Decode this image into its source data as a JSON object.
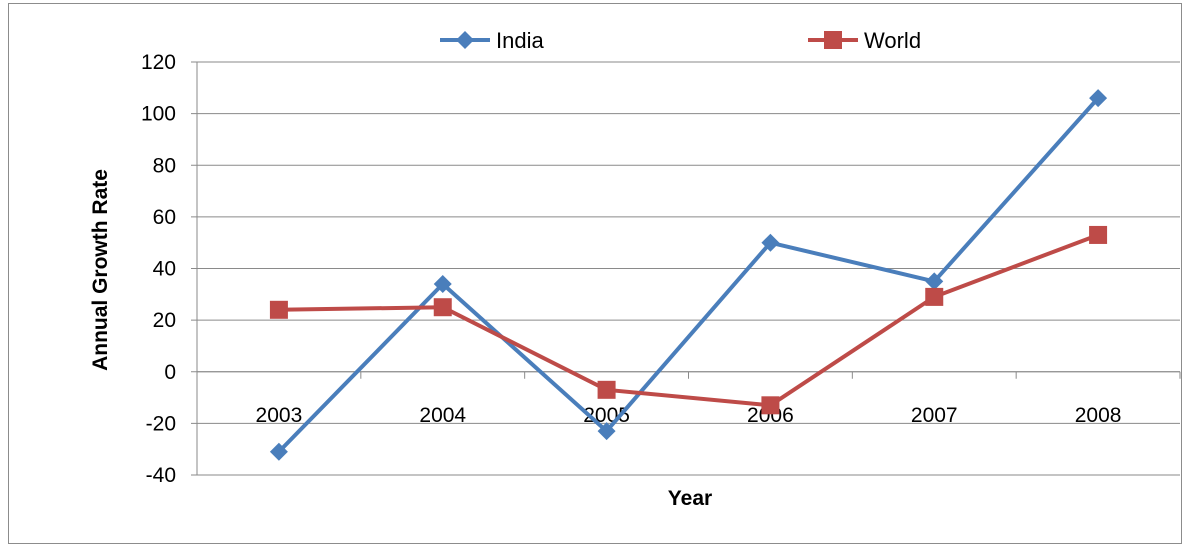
{
  "chart_data": {
    "type": "line",
    "categories": [
      "2003",
      "2004",
      "2005",
      "2006",
      "2007",
      "2008"
    ],
    "series": [
      {
        "name": "India",
        "values": [
          -31,
          34,
          -23,
          50,
          35,
          106
        ],
        "color": "#4a7ebb",
        "marker": "diamond"
      },
      {
        "name": "World",
        "values": [
          24,
          25,
          -7,
          -13,
          29,
          53
        ],
        "color": "#be4b48",
        "marker": "square"
      }
    ],
    "xlabel": "Year",
    "ylabel": "Annual Growth Rate",
    "ylim": [
      -40,
      120
    ],
    "yticks": [
      -40,
      -20,
      0,
      20,
      40,
      60,
      80,
      100,
      120
    ],
    "grid": true,
    "legend_position": "top"
  }
}
